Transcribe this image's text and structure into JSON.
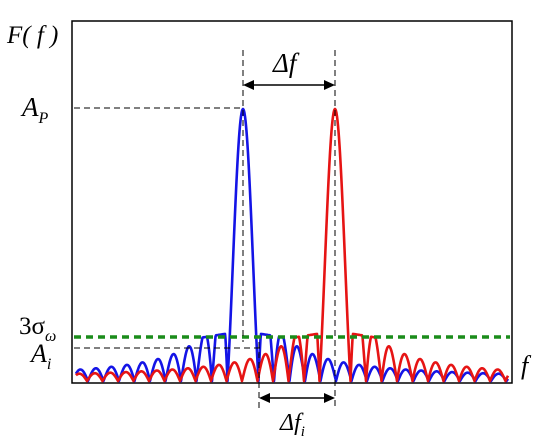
{
  "diagram": {
    "y_axis_label": "F( f )",
    "x_axis_label": "f",
    "peak_amplitude_label": {
      "main": "A",
      "sub": "P"
    },
    "threshold_label": {
      "main": "3σ",
      "sub": "ω"
    },
    "sidelobe_amplitude_label": {
      "main": "A",
      "sub": "i"
    },
    "peak_separation_label": "Δf",
    "interference_offset_label": {
      "main": "Δf",
      "sub": "i"
    }
  },
  "colors": {
    "frame": "#000000",
    "spectrum_1": "#1414e6",
    "spectrum_2": "#e61414",
    "threshold": "#1a8c1a",
    "guide": "#000000"
  }
}
